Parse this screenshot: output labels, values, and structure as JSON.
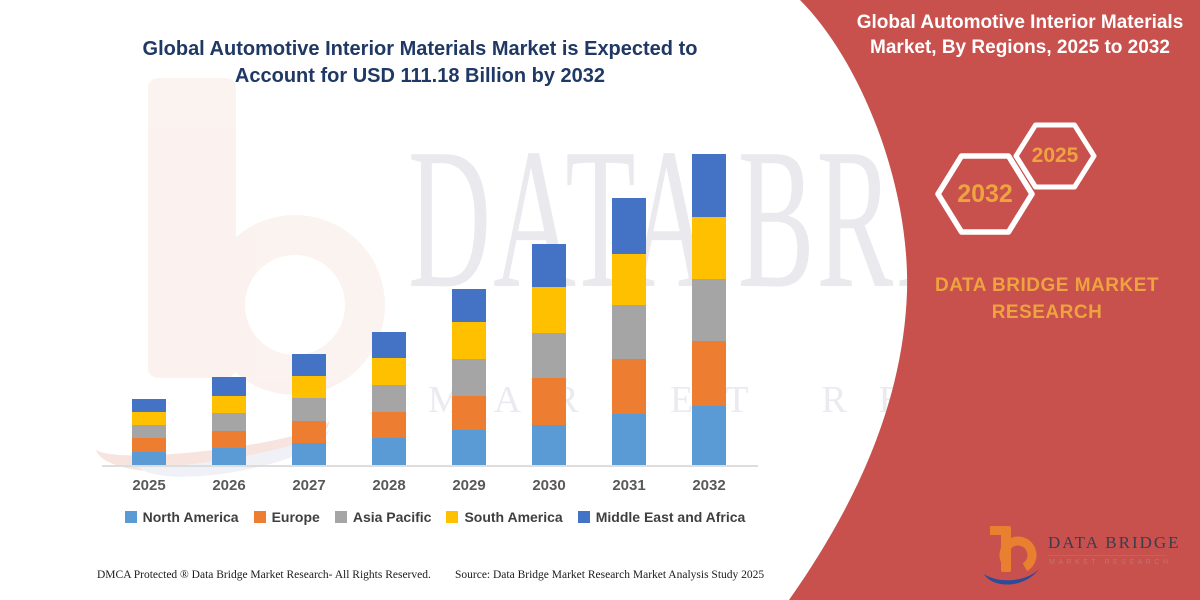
{
  "chart_data": {
    "type": "bar",
    "stacked": true,
    "title": "Global Automotive Interior Materials Market is Expected to Account for USD 111.18 Billion by 2032",
    "unit": "USD Billion",
    "categories": [
      "2025",
      "2026",
      "2027",
      "2028",
      "2029",
      "2030",
      "2031",
      "2032"
    ],
    "series": [
      {
        "name": "North America",
        "color": "#5B9BD5",
        "values": [
          4.7,
          6.2,
          7.9,
          9.6,
          12.5,
          14.3,
          18.1,
          21.1
        ]
      },
      {
        "name": "Europe",
        "color": "#ED7D31",
        "values": [
          4.9,
          6.1,
          7.9,
          9.5,
          12.3,
          16.9,
          19.7,
          23.3
        ]
      },
      {
        "name": "Asia Pacific",
        "color": "#A5A5A5",
        "values": [
          4.6,
          6.4,
          8.0,
          9.5,
          13.1,
          16.1,
          19.4,
          22.1
        ]
      },
      {
        "name": "South America",
        "color": "#FFC000",
        "values": [
          4.6,
          6.0,
          7.9,
          9.5,
          13.1,
          16.4,
          18.1,
          22.2
        ]
      },
      {
        "name": "Middle East and Africa",
        "color": "#4472C4",
        "values": [
          4.8,
          6.8,
          8.0,
          9.5,
          11.9,
          15.1,
          20.1,
          22.48
        ]
      }
    ],
    "totals": [
      23.6,
      31.5,
      39.7,
      47.6,
      62.9,
      78.8,
      95.4,
      111.18
    ],
    "xlabel": "",
    "ylabel": "",
    "ylim": [
      0,
      120
    ],
    "grid": false,
    "legend_position": "bottom"
  },
  "right_panel": {
    "background": "#C8504D",
    "title": "Global Automotive Interior Materials Market, By Regions, 2025 to 2032",
    "hexagon_large_label": "2032",
    "hexagon_small_label": "2025",
    "brand": "DATA BRIDGE MARKET RESEARCH",
    "accent_gold": "#EDA33E"
  },
  "watermarks": {
    "big_text": "DATA BRIDGE",
    "spaced_text": "MARKET RESEARCH"
  },
  "footer": {
    "dmca": "DMCA Protected ® Data Bridge Market Research-  All Rights Reserved.",
    "source": "Source: Data Bridge Market Research  Market Analysis Study 2025"
  },
  "logo": {
    "brand": "DATA BRIDGE",
    "tagline": "MARKET RESEARCH",
    "orange": "#E8802F",
    "blue": "#2B4B9B"
  },
  "colors": {
    "title_navy": "#1F3864",
    "axis_label_gray": "#595959",
    "legend_text_gray": "#3F3F3F"
  }
}
